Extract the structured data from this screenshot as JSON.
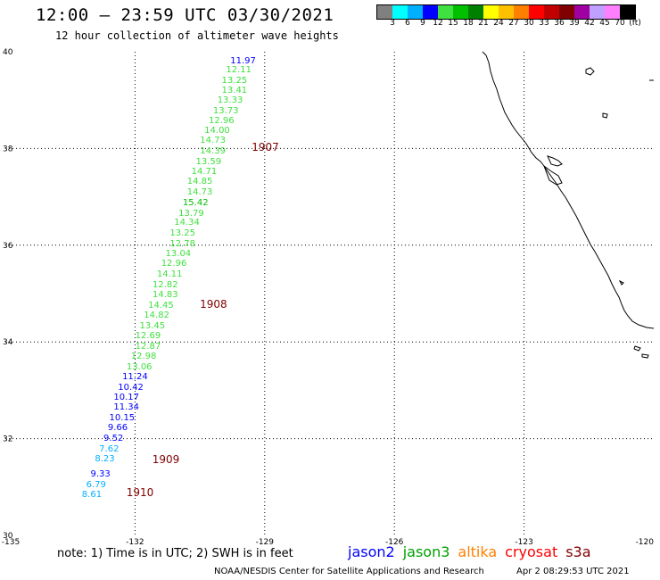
{
  "header": {
    "title": "12:00 – 23:59 UTC 03/30/2021",
    "subtitle": "12 hour collection of altimeter wave heights"
  },
  "legend": {
    "colors": [
      "#808080",
      "#00ffff",
      "#00b0ff",
      "#0000ff",
      "#40e040",
      "#00c000",
      "#008000",
      "#ffff00",
      "#ffc000",
      "#ff8000",
      "#ff0000",
      "#c00000",
      "#800000",
      "#a000a0",
      "#c0a0ff",
      "#ff80ff",
      "#000000"
    ],
    "labels": [
      "3",
      "6",
      "9",
      "12",
      "15",
      "18",
      "21",
      "24",
      "27",
      "30",
      "33",
      "36",
      "39",
      "42",
      "45",
      "70",
      "(ft)"
    ]
  },
  "axes": {
    "lat_labels": [
      "40",
      "38",
      "36",
      "34",
      "32",
      "30"
    ],
    "lon_labels": [
      "-135",
      "-132",
      "-129",
      "-126",
      "-123",
      "-120"
    ]
  },
  "chart_data": {
    "type": "scatter",
    "title": "12:00 – 23:59 UTC 03/30/2021",
    "subtitle": "12 hour collection of altimeter wave heights",
    "xlabel": "",
    "ylabel": "",
    "xlim": [
      -135,
      -120
    ],
    "ylim": [
      30,
      40
    ],
    "grid": true,
    "units": "ft",
    "satellite_colors": {
      "jason2": "#0000ff",
      "jason3": "#00a000",
      "altika": "#ff8000",
      "cryosat": "#ff0000",
      "s3a": "#800000",
      "low_swh": "#00b0ff",
      "mid_swh": "#40e040",
      "mid_dark": "#00c000"
    },
    "points": [
      {
        "lon": -129.5,
        "lat": 39.8,
        "label": "11.97",
        "cls": "jason2"
      },
      {
        "lon": -129.6,
        "lat": 39.61,
        "label": "12.11",
        "cls": "mid_swh"
      },
      {
        "lon": -129.7,
        "lat": 39.4,
        "label": "13.25",
        "cls": "mid_swh"
      },
      {
        "lon": -129.7,
        "lat": 39.19,
        "label": "13.41",
        "cls": "mid_swh"
      },
      {
        "lon": -129.8,
        "lat": 38.98,
        "label": "13.33",
        "cls": "mid_swh"
      },
      {
        "lon": -129.9,
        "lat": 38.77,
        "label": "13.73",
        "cls": "mid_swh"
      },
      {
        "lon": -130.0,
        "lat": 38.56,
        "label": "12.96",
        "cls": "mid_swh"
      },
      {
        "lon": -130.1,
        "lat": 38.36,
        "label": "14.00",
        "cls": "mid_swh"
      },
      {
        "lon": -130.2,
        "lat": 38.15,
        "label": "14.73",
        "cls": "mid_swh"
      },
      {
        "lon": -130.2,
        "lat": 37.93,
        "label": "14.39",
        "cls": "mid_swh"
      },
      {
        "lon": -130.3,
        "lat": 37.72,
        "label": "13.59",
        "cls": "mid_swh"
      },
      {
        "lon": -130.4,
        "lat": 37.51,
        "label": "14.71",
        "cls": "mid_swh"
      },
      {
        "lon": -130.5,
        "lat": 37.3,
        "label": "14.85",
        "cls": "mid_swh"
      },
      {
        "lon": -130.5,
        "lat": 37.09,
        "label": "14.73",
        "cls": "mid_swh"
      },
      {
        "lon": -130.6,
        "lat": 36.87,
        "label": "15.42",
        "cls": "mid_dark"
      },
      {
        "lon": -130.7,
        "lat": 36.65,
        "label": "13.79",
        "cls": "mid_swh"
      },
      {
        "lon": -130.8,
        "lat": 36.45,
        "label": "14.34",
        "cls": "mid_swh"
      },
      {
        "lon": -130.9,
        "lat": 36.24,
        "label": "13.25",
        "cls": "mid_swh"
      },
      {
        "lon": -130.9,
        "lat": 36.02,
        "label": "12.78",
        "cls": "mid_swh"
      },
      {
        "lon": -131.0,
        "lat": 35.81,
        "label": "13.04",
        "cls": "mid_swh"
      },
      {
        "lon": -131.1,
        "lat": 35.6,
        "label": "12.96",
        "cls": "mid_swh"
      },
      {
        "lon": -131.2,
        "lat": 35.39,
        "label": "14.11",
        "cls": "mid_swh"
      },
      {
        "lon": -131.3,
        "lat": 35.17,
        "label": "12.82",
        "cls": "mid_swh"
      },
      {
        "lon": -131.3,
        "lat": 34.96,
        "label": "14.83",
        "cls": "mid_swh"
      },
      {
        "lon": -131.4,
        "lat": 34.74,
        "label": "14.45",
        "cls": "mid_swh"
      },
      {
        "lon": -131.5,
        "lat": 34.53,
        "label": "14.82",
        "cls": "mid_swh"
      },
      {
        "lon": -131.6,
        "lat": 34.32,
        "label": "13.45",
        "cls": "mid_swh"
      },
      {
        "lon": -131.7,
        "lat": 34.11,
        "label": "12.69",
        "cls": "mid_swh"
      },
      {
        "lon": -131.7,
        "lat": 33.9,
        "label": "12.87",
        "cls": "mid_swh"
      },
      {
        "lon": -131.8,
        "lat": 33.69,
        "label": "12.98",
        "cls": "mid_swh"
      },
      {
        "lon": -131.9,
        "lat": 33.47,
        "label": "13.06",
        "cls": "mid_swh"
      },
      {
        "lon": -132.0,
        "lat": 33.26,
        "label": "11.24",
        "cls": "jason2"
      },
      {
        "lon": -132.1,
        "lat": 33.05,
        "label": "10.42",
        "cls": "jason2"
      },
      {
        "lon": -132.2,
        "lat": 32.84,
        "label": "10.17",
        "cls": "jason2"
      },
      {
        "lon": -132.2,
        "lat": 32.63,
        "label": "11.34",
        "cls": "jason2"
      },
      {
        "lon": -132.3,
        "lat": 32.42,
        "label": "10.15",
        "cls": "jason2"
      },
      {
        "lon": -132.4,
        "lat": 32.21,
        "label": "9.66",
        "cls": "jason2"
      },
      {
        "lon": -132.5,
        "lat": 31.99,
        "label": "9.52",
        "cls": "jason2"
      },
      {
        "lon": -132.6,
        "lat": 31.78,
        "label": "7.62",
        "cls": "low_swh"
      },
      {
        "lon": -132.7,
        "lat": 31.56,
        "label": "8.23",
        "cls": "low_swh"
      },
      {
        "lon": -132.8,
        "lat": 31.25,
        "label": "9.33",
        "cls": "jason2"
      },
      {
        "lon": -132.9,
        "lat": 31.04,
        "label": "6.79",
        "cls": "low_swh"
      },
      {
        "lon": -133.0,
        "lat": 30.83,
        "label": "8.61",
        "cls": "low_swh"
      }
    ],
    "time_markers": [
      {
        "lon": -129.3,
        "lat": 38.03,
        "label": "1907"
      },
      {
        "lon": -130.5,
        "lat": 34.78,
        "label": "1908"
      },
      {
        "lon": -131.6,
        "lat": 31.57,
        "label": "1909"
      },
      {
        "lon": -132.2,
        "lat": 30.88,
        "label": "1910"
      }
    ]
  },
  "footer": {
    "note": "note:  1) Time is in UTC;  2) SWH is in feet",
    "satellites": [
      {
        "name": "jason2",
        "color": "#0000ff"
      },
      {
        "name": "jason3",
        "color": "#00a000"
      },
      {
        "name": "altika",
        "color": "#ff8000"
      },
      {
        "name": "cryosat",
        "color": "#ff0000"
      },
      {
        "name": "s3a",
        "color": "#800000"
      }
    ],
    "credit": "NOAA/NESDIS Center for Satellite Applications and Research",
    "timestamp": "Apr  2 08:29:53 UTC 2021"
  }
}
